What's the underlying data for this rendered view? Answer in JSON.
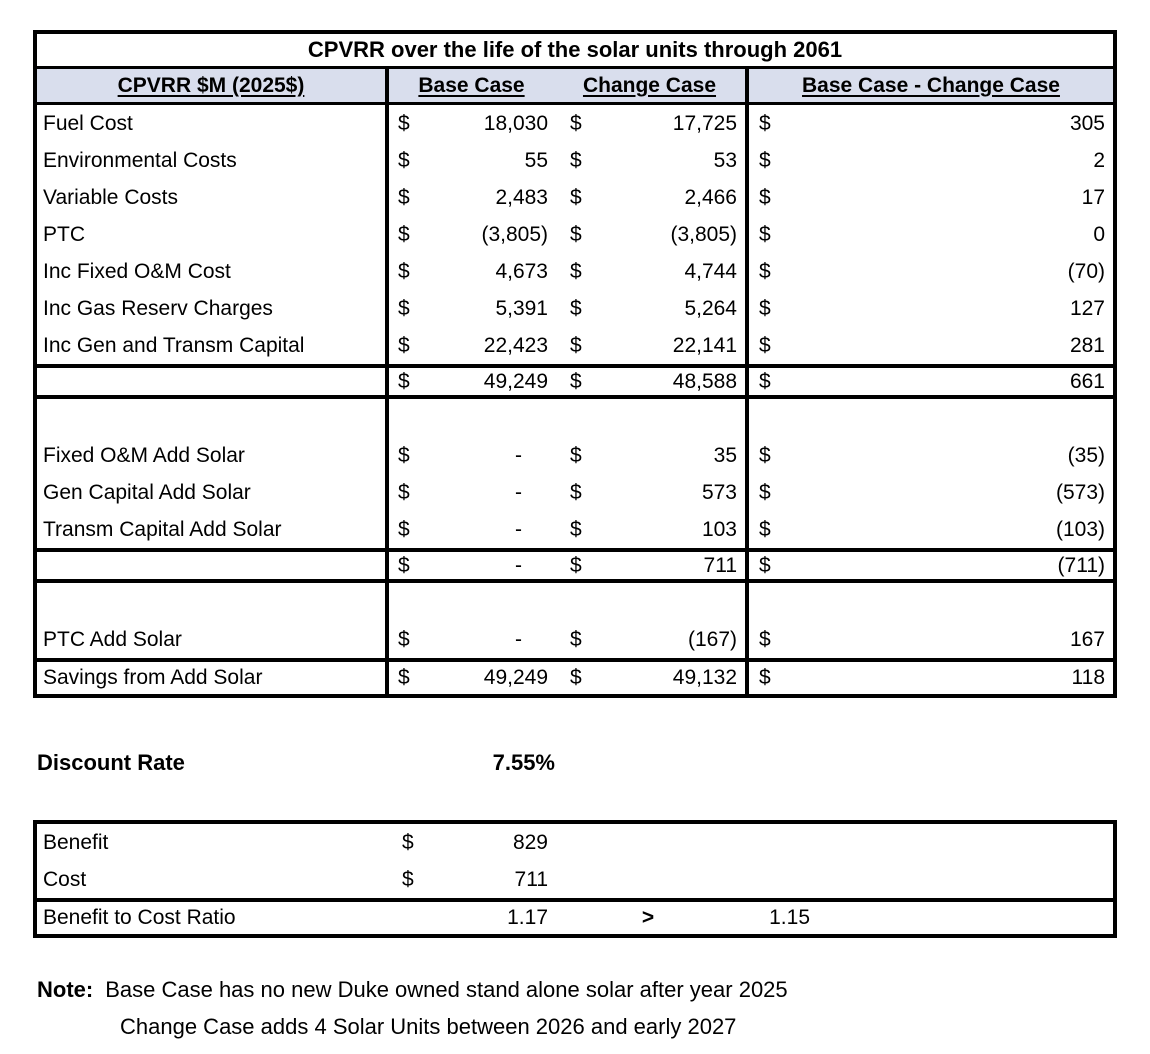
{
  "currency_symbol": "$",
  "colors": {
    "header_bg": "#D9DEED"
  },
  "table": {
    "title": "CPVRR over the life of the solar units through 2061",
    "header": {
      "col_label": "CPVRR $M (2025$)",
      "col_base": "Base Case",
      "col_change": "Change Case",
      "col_diff": "Base Case - Change Case"
    },
    "rows1": [
      {
        "label": "Fuel Cost",
        "base": "18,030",
        "change": "17,725",
        "diff": "305"
      },
      {
        "label": "Environmental Costs",
        "base": "55",
        "change": "53",
        "diff": "2"
      },
      {
        "label": "Variable Costs",
        "base": "2,483",
        "change": "2,466",
        "diff": "17"
      },
      {
        "label": "PTC",
        "base": "(3,805)",
        "change": "(3,805)",
        "diff": "0"
      },
      {
        "label": "Inc Fixed O&M Cost",
        "base": "4,673",
        "change": "4,744",
        "diff": "(70)"
      },
      {
        "label": "Inc Gas Reserv Charges",
        "base": "5,391",
        "change": "5,264",
        "diff": "127"
      },
      {
        "label": "Inc Gen and Transm Capital",
        "base": "22,423",
        "change": "22,141",
        "diff": "281"
      }
    ],
    "total1": {
      "base": "49,249",
      "change": "48,588",
      "diff": "661"
    },
    "rows2": [
      {
        "label": "Fixed O&M Add Solar",
        "base": "-",
        "change": "35",
        "diff": "(35)"
      },
      {
        "label": "Gen Capital Add Solar",
        "base": "-",
        "change": "573",
        "diff": "(573)"
      },
      {
        "label": "Transm Capital Add Solar",
        "base": "-",
        "change": "103",
        "diff": "(103)"
      }
    ],
    "total2": {
      "base": "-",
      "change": "711",
      "diff": "(711)"
    },
    "rows3": [
      {
        "label": "PTC Add Solar",
        "base": "-",
        "change": "(167)",
        "diff": "167"
      }
    ],
    "savings": {
      "label": "Savings from Add Solar",
      "base": "49,249",
      "change": "49,132",
      "diff": "118"
    }
  },
  "discount": {
    "label": "Discount Rate",
    "value": "7.55%"
  },
  "benefit_box": {
    "benefit": {
      "label": "Benefit",
      "value": "829"
    },
    "cost": {
      "label": "Cost",
      "value": "711"
    },
    "ratio": {
      "label": "Benefit to Cost Ratio",
      "value": "1.17",
      "comparator": ">",
      "threshold": "1.15"
    }
  },
  "note": {
    "label": "Note:",
    "line1": "Base Case has no new Duke owned stand alone solar after year 2025",
    "line2": "Change Case adds 4 Solar Units between 2026 and early 2027"
  }
}
